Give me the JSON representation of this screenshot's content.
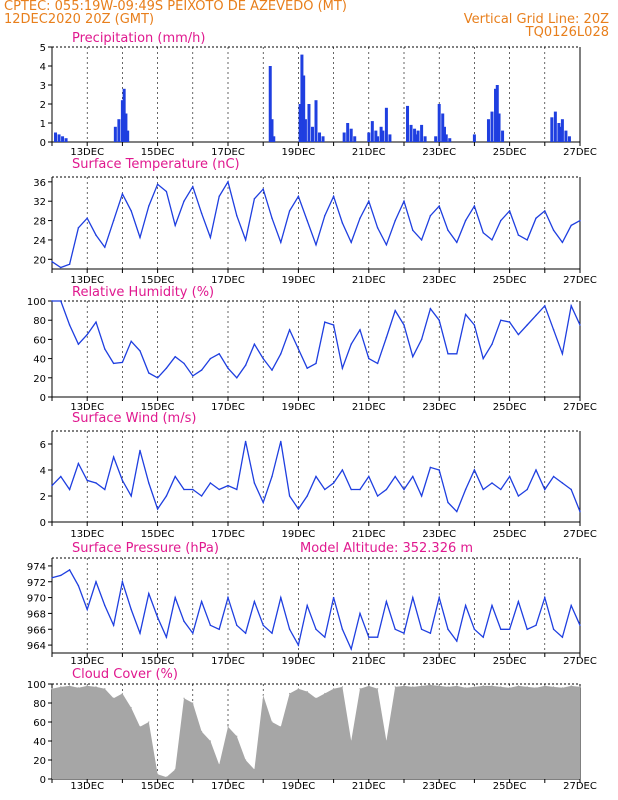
{
  "header": {
    "line1_left": "CPTEC:   055:19W-09:49S   PEIXOTO DE AZEVEDO (MT)",
    "line2_left": "12DEC2020 20Z (GMT)",
    "line2_right": "Vertical Grid Line: 20Z",
    "line3_right": "TQ0126L028"
  },
  "colors": {
    "header": "#e87f1c",
    "title": "#e0198f",
    "line": "#1f3fe0",
    "cloud": "#a6a6a6",
    "axis": "#000000"
  },
  "chart_data": [
    {
      "type": "bar",
      "title": "Precipitation (mm/h)",
      "xlabel": "",
      "ylabel": "",
      "xlim": [
        0,
        15
      ],
      "ylim": [
        0,
        5
      ],
      "yticks": [
        0,
        1,
        2,
        3,
        4,
        5
      ],
      "xtick_labels": [
        "13DEC",
        "15DEC",
        "17DEC",
        "19DEC",
        "21DEC",
        "23DEC",
        "25DEC",
        "27DEC"
      ],
      "x": [
        0.1,
        0.2,
        0.3,
        0.4,
        1.8,
        1.9,
        2.0,
        2.05,
        2.1,
        2.15,
        6.2,
        6.25,
        6.3,
        7.05,
        7.1,
        7.15,
        7.2,
        7.3,
        7.4,
        7.5,
        7.6,
        7.7,
        8.3,
        8.4,
        8.5,
        8.6,
        9.0,
        9.1,
        9.2,
        9.25,
        9.35,
        9.4,
        9.5,
        9.6,
        10.1,
        10.2,
        10.3,
        10.35,
        10.4,
        10.5,
        10.6,
        10.9,
        11.0,
        11.1,
        11.15,
        11.2,
        11.3,
        12.0,
        12.4,
        12.5,
        12.6,
        12.65,
        12.7,
        12.8,
        14.2,
        14.3,
        14.4,
        14.45,
        14.5,
        14.6,
        14.7
      ],
      "values": [
        0.5,
        0.4,
        0.3,
        0.2,
        0.8,
        1.2,
        2.2,
        2.8,
        1.5,
        0.6,
        4.0,
        1.2,
        0.3,
        2.0,
        4.6,
        3.5,
        1.2,
        2.0,
        0.8,
        2.2,
        0.5,
        0.3,
        0.5,
        1.0,
        0.7,
        0.3,
        0.5,
        1.1,
        0.6,
        0.3,
        0.8,
        0.6,
        1.8,
        0.4,
        1.9,
        0.9,
        0.7,
        0.4,
        0.6,
        0.9,
        0.3,
        0.3,
        2.0,
        1.5,
        0.8,
        0.4,
        0.2,
        0.4,
        1.2,
        1.6,
        2.8,
        3.0,
        1.5,
        0.6,
        1.3,
        1.6,
        1.0,
        0.8,
        1.2,
        0.6,
        0.3
      ]
    },
    {
      "type": "line",
      "title": "Surface Temperature (nC)",
      "xlim": [
        0,
        15
      ],
      "ylim": [
        18,
        37
      ],
      "yticks": [
        20,
        24,
        28,
        32,
        36
      ],
      "xtick_labels": [
        "13DEC",
        "15DEC",
        "17DEC",
        "19DEC",
        "21DEC",
        "23DEC",
        "25DEC",
        "27DEC"
      ],
      "x": [
        0,
        0.25,
        0.5,
        0.75,
        1.0,
        1.25,
        1.5,
        1.75,
        2.0,
        2.25,
        2.5,
        2.75,
        3.0,
        3.25,
        3.5,
        3.75,
        4.0,
        4.25,
        4.5,
        4.75,
        5.0,
        5.25,
        5.5,
        5.75,
        6.0,
        6.25,
        6.5,
        6.75,
        7.0,
        7.25,
        7.5,
        7.75,
        8.0,
        8.25,
        8.5,
        8.75,
        9.0,
        9.25,
        9.5,
        9.75,
        10.0,
        10.25,
        10.5,
        10.75,
        11.0,
        11.25,
        11.5,
        11.75,
        12.0,
        12.25,
        12.5,
        12.75,
        13.0,
        13.25,
        13.5,
        13.75,
        14.0,
        14.25,
        14.5,
        14.75,
        15.0
      ],
      "values": [
        19.5,
        18.3,
        19.0,
        26.5,
        28.5,
        25.0,
        22.5,
        28.0,
        33.5,
        30.0,
        24.5,
        31.0,
        35.5,
        34.0,
        27.0,
        32.0,
        35.0,
        29.5,
        24.5,
        33.0,
        36.0,
        29.0,
        24.0,
        32.5,
        34.5,
        28.5,
        23.5,
        30.0,
        33.0,
        28.0,
        23.0,
        29.0,
        33.0,
        27.5,
        23.5,
        28.5,
        32.0,
        26.5,
        23.0,
        28.0,
        32.0,
        26.0,
        24.0,
        29.0,
        31.0,
        26.0,
        23.5,
        28.0,
        31.0,
        25.5,
        24.0,
        28.0,
        30.0,
        25.0,
        24.0,
        28.5,
        30.0,
        26.0,
        23.5,
        27.0,
        28.0
      ]
    },
    {
      "type": "line",
      "title": "Relative Humidity (%)",
      "xlim": [
        0,
        15
      ],
      "ylim": [
        0,
        100
      ],
      "yticks": [
        0,
        20,
        40,
        60,
        80,
        100
      ],
      "xtick_labels": [
        "13DEC",
        "15DEC",
        "17DEC",
        "19DEC",
        "21DEC",
        "23DEC",
        "25DEC",
        "27DEC"
      ],
      "x": [
        0,
        0.25,
        0.5,
        0.75,
        1.0,
        1.25,
        1.5,
        1.75,
        2.0,
        2.25,
        2.5,
        2.75,
        3.0,
        3.25,
        3.5,
        3.75,
        4.0,
        4.25,
        4.5,
        4.75,
        5.0,
        5.25,
        5.5,
        5.75,
        6.0,
        6.25,
        6.5,
        6.75,
        7.0,
        7.25,
        7.5,
        7.75,
        8.0,
        8.25,
        8.5,
        8.75,
        9.0,
        9.25,
        9.5,
        9.75,
        10.0,
        10.25,
        10.5,
        10.75,
        11.0,
        11.25,
        11.5,
        11.75,
        12.0,
        12.25,
        12.5,
        12.75,
        13.0,
        13.25,
        13.5,
        13.75,
        14.0,
        14.25,
        14.5,
        14.75,
        15.0
      ],
      "values": [
        100,
        100,
        75,
        55,
        65,
        78,
        50,
        35,
        36,
        58,
        48,
        25,
        20,
        30,
        42,
        35,
        22,
        28,
        40,
        45,
        30,
        20,
        33,
        55,
        40,
        28,
        45,
        70,
        50,
        30,
        35,
        78,
        75,
        30,
        55,
        70,
        40,
        35,
        62,
        90,
        75,
        42,
        60,
        92,
        80,
        45,
        45,
        86,
        75,
        40,
        55,
        80,
        78,
        65,
        75,
        85,
        95,
        70,
        45,
        95,
        75
      ]
    },
    {
      "type": "line",
      "title": "Surface Wind (m/s)",
      "xlim": [
        0,
        15
      ],
      "ylim": [
        0,
        7
      ],
      "yticks": [
        0,
        2,
        4,
        6
      ],
      "xtick_labels": [
        "13DEC",
        "15DEC",
        "17DEC",
        "19DEC",
        "21DEC",
        "23DEC",
        "25DEC",
        "27DEC"
      ],
      "x": [
        0,
        0.25,
        0.5,
        0.75,
        1.0,
        1.25,
        1.5,
        1.75,
        2.0,
        2.25,
        2.5,
        2.75,
        3.0,
        3.25,
        3.5,
        3.75,
        4.0,
        4.25,
        4.5,
        4.75,
        5.0,
        5.25,
        5.5,
        5.75,
        6.0,
        6.25,
        6.5,
        6.75,
        7.0,
        7.25,
        7.5,
        7.75,
        8.0,
        8.25,
        8.5,
        8.75,
        9.0,
        9.25,
        9.5,
        9.75,
        10.0,
        10.25,
        10.5,
        10.75,
        11.0,
        11.25,
        11.5,
        11.75,
        12.0,
        12.25,
        12.5,
        12.75,
        13.0,
        13.25,
        13.5,
        13.75,
        14.0,
        14.25,
        14.5,
        14.75,
        15.0
      ],
      "values": [
        2.8,
        3.5,
        2.5,
        4.5,
        3.2,
        3.0,
        2.5,
        5.0,
        3.2,
        2.0,
        5.5,
        3.0,
        1.0,
        2.0,
        3.5,
        2.5,
        2.5,
        2.0,
        3.0,
        2.5,
        2.8,
        2.5,
        6.2,
        3.0,
        1.5,
        3.5,
        6.2,
        2.0,
        1.0,
        2.0,
        3.5,
        2.5,
        3.0,
        4.0,
        2.5,
        2.5,
        3.5,
        2.0,
        2.5,
        3.5,
        2.5,
        3.5,
        2.0,
        4.2,
        4.0,
        1.5,
        0.8,
        2.5,
        4.0,
        2.5,
        3.0,
        2.5,
        3.5,
        2.0,
        2.5,
        4.0,
        2.5,
        3.5,
        3.0,
        2.5,
        0.8
      ]
    },
    {
      "type": "line",
      "title": "Surface Pressure (hPa)",
      "annotation": "Model Altitude: 352.326 m",
      "xlim": [
        0,
        15
      ],
      "ylim": [
        963,
        975
      ],
      "yticks": [
        964,
        966,
        968,
        970,
        972,
        974
      ],
      "xtick_labels": [
        "13DEC",
        "15DEC",
        "17DEC",
        "19DEC",
        "21DEC",
        "23DEC",
        "25DEC",
        "27DEC"
      ],
      "x": [
        0,
        0.25,
        0.5,
        0.75,
        1.0,
        1.25,
        1.5,
        1.75,
        2.0,
        2.25,
        2.5,
        2.75,
        3.0,
        3.25,
        3.5,
        3.75,
        4.0,
        4.25,
        4.5,
        4.75,
        5.0,
        5.25,
        5.5,
        5.75,
        6.0,
        6.25,
        6.5,
        6.75,
        7.0,
        7.25,
        7.5,
        7.75,
        8.0,
        8.25,
        8.5,
        8.75,
        9.0,
        9.25,
        9.5,
        9.75,
        10.0,
        10.25,
        10.5,
        10.75,
        11.0,
        11.25,
        11.5,
        11.75,
        12.0,
        12.25,
        12.5,
        12.75,
        13.0,
        13.25,
        13.5,
        13.75,
        14.0,
        14.25,
        14.5,
        14.75,
        15.0
      ],
      "values": [
        972.5,
        972.8,
        973.5,
        971.5,
        968.5,
        972.0,
        969.0,
        966.5,
        972.0,
        968.5,
        965.5,
        970.5,
        967.5,
        965.0,
        970.0,
        967.0,
        965.5,
        969.5,
        966.5,
        966.0,
        970.0,
        966.5,
        965.5,
        969.5,
        966.5,
        965.5,
        970.0,
        966.0,
        964.0,
        969.0,
        966.0,
        965.0,
        970.0,
        966.0,
        963.5,
        968.0,
        965.0,
        965.0,
        969.5,
        966.0,
        965.5,
        970.0,
        966.0,
        965.5,
        970.0,
        966.0,
        964.5,
        969.0,
        966.0,
        965.0,
        969.0,
        966.0,
        966.0,
        969.5,
        966.0,
        966.5,
        970.0,
        966.0,
        965.0,
        969.0,
        966.5
      ]
    },
    {
      "type": "area",
      "title": "Cloud Cover (%)",
      "xlim": [
        0,
        15
      ],
      "ylim": [
        0,
        100
      ],
      "yticks": [
        0,
        20,
        40,
        60,
        80,
        100
      ],
      "xtick_labels": [
        "13DEC",
        "15DEC",
        "17DEC",
        "19DEC",
        "21DEC",
        "23DEC",
        "25DEC",
        "27DEC"
      ],
      "x": [
        0,
        0.25,
        0.5,
        0.75,
        1.0,
        1.25,
        1.5,
        1.75,
        2.0,
        2.25,
        2.5,
        2.75,
        3.0,
        3.25,
        3.5,
        3.75,
        4.0,
        4.25,
        4.5,
        4.75,
        5.0,
        5.25,
        5.5,
        5.75,
        6.0,
        6.25,
        6.5,
        6.75,
        7.0,
        7.25,
        7.5,
        7.75,
        8.0,
        8.25,
        8.5,
        8.75,
        9.0,
        9.25,
        9.5,
        9.75,
        10.0,
        10.25,
        10.5,
        10.75,
        11.0,
        11.25,
        11.5,
        11.75,
        12.0,
        12.25,
        12.5,
        12.75,
        13.0,
        13.25,
        13.5,
        13.75,
        14.0,
        14.25,
        14.5,
        14.75,
        15.0
      ],
      "values": [
        95,
        97,
        98,
        96,
        98,
        97,
        95,
        85,
        90,
        75,
        55,
        60,
        5,
        2,
        10,
        85,
        80,
        50,
        40,
        15,
        55,
        45,
        20,
        10,
        88,
        60,
        55,
        90,
        95,
        92,
        85,
        90,
        95,
        97,
        40,
        95,
        98,
        95,
        40,
        97,
        98,
        97,
        98,
        99,
        98,
        97,
        98,
        96,
        97,
        98,
        98,
        97,
        96,
        98,
        97,
        96,
        98,
        97,
        96,
        98,
        97
      ]
    }
  ]
}
